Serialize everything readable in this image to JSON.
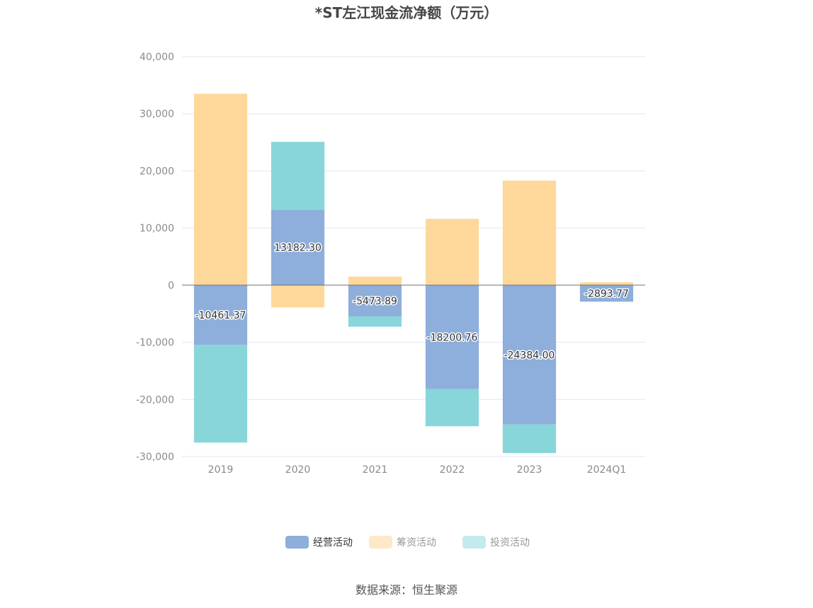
{
  "chart_data": {
    "type": "bar",
    "stacked": true,
    "title": "*ST左江现金流净额（万元）",
    "source": "数据来源：恒生聚源",
    "categories": [
      "2019",
      "2020",
      "2021",
      "2022",
      "2023",
      "2024Q1"
    ],
    "ylim": [
      -30000,
      40000
    ],
    "yticks": [
      40000,
      30000,
      20000,
      10000,
      0,
      -10000,
      -20000,
      -30000
    ],
    "ytick_labels": [
      "40,000",
      "30,000",
      "20,000",
      "10,000",
      "0",
      "-10,000",
      "-20,000",
      "-30,000"
    ],
    "grid": true,
    "legend_position": "bottom-center",
    "series": [
      {
        "name": "经营活动",
        "color": "#8eaedb",
        "values": [
          -10461.37,
          13182.3,
          -5473.89,
          -18200.76,
          -24384.0,
          -2893.77
        ],
        "labels": [
          "-10461.37",
          "13182.30",
          "-5473.89",
          "-18200.76",
          "-24384.00",
          "-2893.77"
        ]
      },
      {
        "name": "筹资活动",
        "color": "#fed89b",
        "values": [
          33500,
          -3900,
          1500,
          11600,
          18300,
          500
        ]
      },
      {
        "name": "投资活动",
        "color": "#88d6da",
        "values": [
          -17100,
          11900,
          -1800,
          -6500,
          -5000,
          0
        ]
      }
    ],
    "legend_colors": {
      "经营活动": "#8eaedb",
      "筹资活动": "#ffe8c7",
      "投资活动": "#c3ebed"
    }
  }
}
